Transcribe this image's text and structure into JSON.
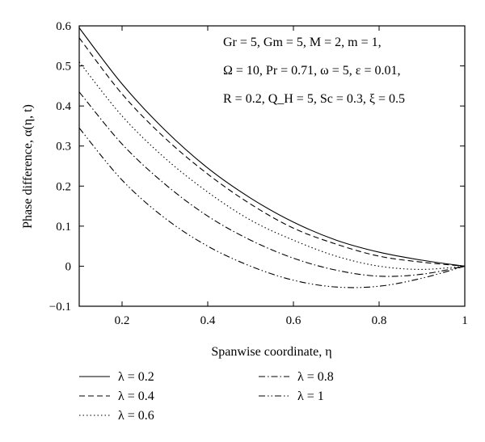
{
  "chart_data": {
    "type": "line",
    "xlabel": "Spanwise coordinate, η",
    "ylabel": "Phase difference, α(η, t)",
    "xlim": [
      0.1,
      1.0
    ],
    "ylim": [
      -0.1,
      0.6
    ],
    "xticks": [
      0.2,
      0.4,
      0.6,
      0.8,
      1
    ],
    "xtick_labels": [
      "0.2",
      "0.4",
      "0.6",
      "0.8",
      "1"
    ],
    "yticks": [
      -0.1,
      0,
      0.1,
      0.2,
      0.3,
      0.4,
      0.5,
      0.6
    ],
    "ytick_labels": [
      "−0.1",
      "0",
      "0.1",
      "0.2",
      "0.3",
      "0.4",
      "0.5",
      "0.6"
    ],
    "grid": false,
    "legend_position": "bottom",
    "annotations": [
      "Gr = 5, Gm = 5, M = 2, m = 1,",
      "Ω = 10, Pr = 0.71, ω = 5, ε = 0.01,",
      "R = 0.2, Q_H = 5, Sc = 0.3, ξ = 0.5"
    ],
    "x": [
      0.1,
      0.2,
      0.3,
      0.4,
      0.5,
      0.6,
      0.7,
      0.8,
      0.9,
      1.0
    ],
    "series": [
      {
        "name": "λ = 0.2",
        "dash": "solid",
        "values": [
          0.595,
          0.455,
          0.34,
          0.245,
          0.17,
          0.11,
          0.065,
          0.035,
          0.015,
          0.0
        ]
      },
      {
        "name": "λ = 0.4",
        "dash": "dashed",
        "values": [
          0.57,
          0.43,
          0.32,
          0.23,
          0.155,
          0.095,
          0.055,
          0.025,
          0.01,
          0.0
        ]
      },
      {
        "name": "λ = 0.6",
        "dash": "dotted",
        "values": [
          0.51,
          0.375,
          0.27,
          0.185,
          0.115,
          0.065,
          0.025,
          0.0,
          -0.008,
          0.0
        ]
      },
      {
        "name": "λ = 0.8",
        "dash": "dashdot",
        "values": [
          0.435,
          0.305,
          0.205,
          0.125,
          0.065,
          0.02,
          -0.01,
          -0.025,
          -0.02,
          0.0
        ]
      },
      {
        "name": "λ = 1",
        "dash": "dashdotdot",
        "values": [
          0.345,
          0.215,
          0.12,
          0.05,
          0.0,
          -0.035,
          -0.052,
          -0.05,
          -0.03,
          0.0
        ]
      }
    ]
  }
}
